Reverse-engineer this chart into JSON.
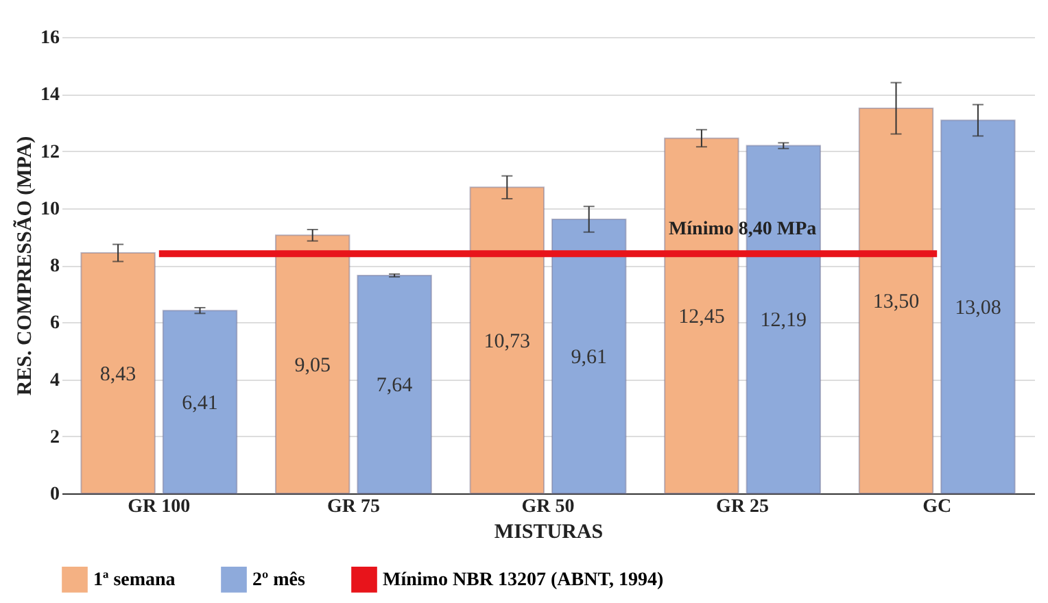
{
  "chart_data": {
    "type": "bar",
    "xlabel": "MISTURAS",
    "ylabel": "RES. COMPRESSÃO (MPA)",
    "categories": [
      "GR 100",
      "GR 75",
      "GR 50",
      "GR 25",
      "GC"
    ],
    "series": [
      {
        "name": "1ª semana",
        "color": "#f4b183",
        "values": [
          8.43,
          9.05,
          10.73,
          12.45,
          13.5
        ],
        "value_labels": [
          "8,43",
          "9,05",
          "10,73",
          "12,45",
          "13,50"
        ],
        "errors": [
          0.3,
          0.2,
          0.4,
          0.3,
          0.9
        ]
      },
      {
        "name": "2º mês",
        "color": "#8eaadb",
        "values": [
          6.41,
          7.64,
          9.61,
          12.19,
          13.08
        ],
        "value_labels": [
          "6,41",
          "7,64",
          "9,61",
          "12,19",
          "13,08"
        ],
        "errors": [
          0.1,
          0.05,
          0.45,
          0.1,
          0.55
        ]
      },
      {
        "name": "Mínimo NBR 13207 (ABNT, 1994)",
        "type": "line",
        "color": "#e8141b",
        "values": [
          8.4,
          8.4,
          8.4,
          8.4,
          8.4
        ]
      }
    ],
    "annotations": [
      {
        "text": "Mínimo 8,40 MPa",
        "x": "GR 25",
        "y": 8.4
      }
    ],
    "ylim": [
      0,
      16
    ],
    "yticks": [
      0,
      2,
      4,
      6,
      8,
      10,
      12,
      14,
      16
    ],
    "grid": "y",
    "legend": "bottom"
  }
}
